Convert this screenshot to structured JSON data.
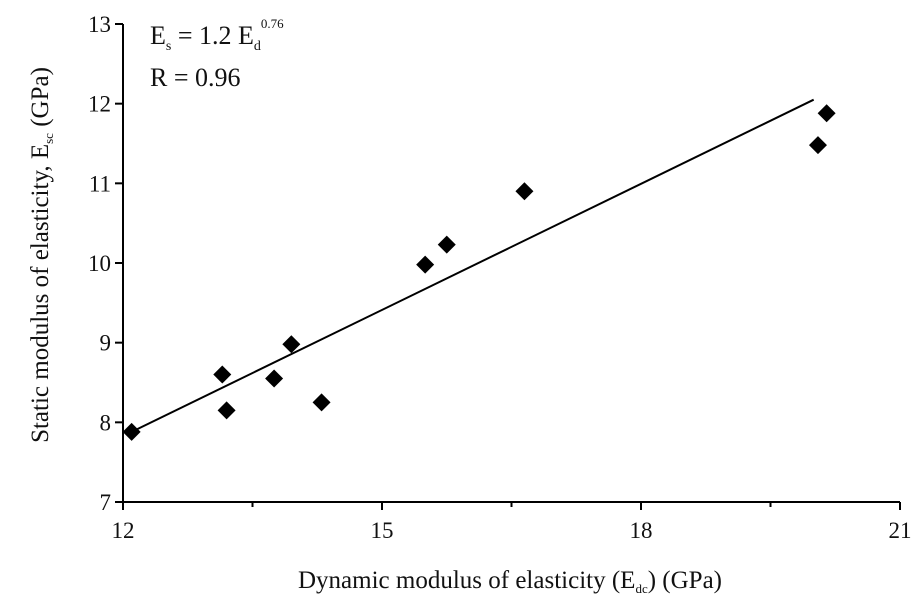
{
  "chart_data": {
    "type": "scatter",
    "xlabel": {
      "text": "Dynamic modulus of elasticity (E",
      "sub": "dc",
      "tail": ") (GPa)"
    },
    "ylabel": {
      "text": "Static modulus of elasticity, E",
      "sub": "sc",
      "tail": " (GPa)"
    },
    "xlim": [
      12,
      21
    ],
    "ylim": [
      7,
      13
    ],
    "x_ticks": [
      12,
      15,
      18,
      21
    ],
    "x_minor_ticks": [
      13.5,
      16.5,
      19.5
    ],
    "y_ticks": [
      7,
      8,
      9,
      10,
      11,
      12,
      13
    ],
    "grid": false,
    "points": [
      {
        "x": 12.1,
        "y": 7.88
      },
      {
        "x": 13.15,
        "y": 8.6
      },
      {
        "x": 13.2,
        "y": 8.15
      },
      {
        "x": 13.75,
        "y": 8.55
      },
      {
        "x": 13.95,
        "y": 8.98
      },
      {
        "x": 14.3,
        "y": 8.25
      },
      {
        "x": 15.5,
        "y": 9.98
      },
      {
        "x": 15.75,
        "y": 10.23
      },
      {
        "x": 16.65,
        "y": 10.9
      },
      {
        "x": 20.05,
        "y": 11.48
      },
      {
        "x": 20.15,
        "y": 11.88
      }
    ],
    "fit_line": {
      "x": [
        12.1,
        20.0
      ],
      "y": [
        7.88,
        12.05
      ]
    },
    "annotations": {
      "equation": {
        "base": "E",
        "sub1": "s",
        "mid": " = 1.2 E",
        "sub2": "d",
        "sup": "0.76"
      },
      "r_value": "R  = 0.96"
    },
    "colors": {
      "marker": "#000000",
      "line": "#000000",
      "axis": "#000000"
    }
  }
}
